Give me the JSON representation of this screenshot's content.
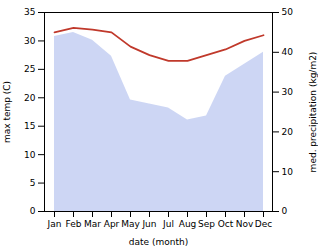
{
  "chart_data": {
    "type": "line",
    "categories": [
      "Jan",
      "Feb",
      "Mar",
      "Apr",
      "May",
      "Jun",
      "Jul",
      "Aug",
      "Sep",
      "Oct",
      "Nov",
      "Dec"
    ],
    "xlabel": "date (month)",
    "ylabel": "max temp (C)",
    "y2label": "med. precipitation (kg/m2)",
    "series": [
      {
        "type": "area",
        "axis": "y2",
        "color": "#b8c4f0",
        "values": [
          44,
          45,
          43,
          39,
          28,
          27,
          26,
          23,
          24,
          34,
          37,
          40
        ]
      },
      {
        "type": "line",
        "color": "#c0392b",
        "values": [
          31.5,
          32.3,
          32.0,
          31.5,
          29.0,
          27.5,
          26.5,
          26.5,
          27.5,
          28.5,
          30.0,
          31.0
        ]
      }
    ],
    "ylim": [
      0,
      35
    ],
    "yticks": [
      0,
      5,
      10,
      15,
      20,
      25,
      30,
      35
    ],
    "y2lim": [
      0,
      50
    ],
    "y2ticks": [
      0,
      10,
      20,
      30,
      40,
      50
    ]
  }
}
